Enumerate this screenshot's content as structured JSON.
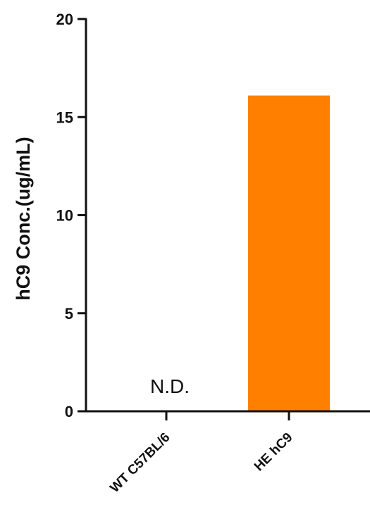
{
  "chart_data": {
    "type": "bar",
    "title": "",
    "xlabel": "",
    "ylabel": "hC9 Conc.(ug/mL)",
    "ylim": [
      0,
      20
    ],
    "yticks": [
      0,
      5,
      10,
      15,
      20
    ],
    "categories": [
      "WT C57BL/6",
      "HE hC9"
    ],
    "values": [
      0,
      16.1
    ],
    "bar_color": "#FF8000",
    "grid": false,
    "annotations": [
      {
        "category": "WT C57BL/6",
        "text": "N.D."
      }
    ]
  }
}
